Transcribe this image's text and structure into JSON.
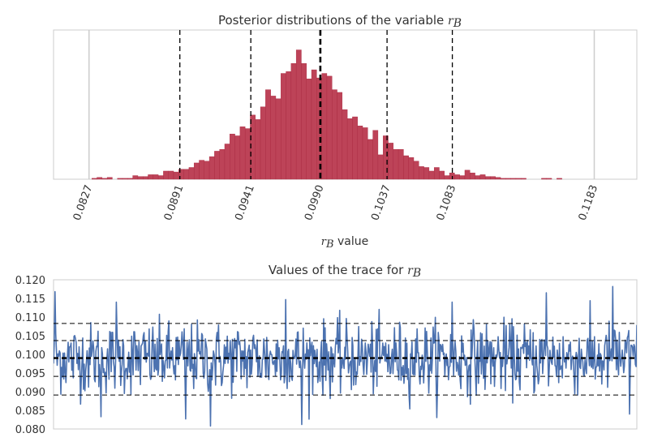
{
  "colors": {
    "hist_fill": "#bd4358",
    "hist_edge": "#a8283f",
    "trace": "#4c72b0",
    "spine": "#cccccc",
    "text": "#333333",
    "dashed": "#000000",
    "ref_line": "#cccccc"
  },
  "chart_data": [
    {
      "type": "bar",
      "title": "Posterior distributions of the variable ",
      "title_math": "r",
      "title_math_sub": "B",
      "xlabel_math": "r",
      "xlabel_math_sub": "B",
      "xlabel": " value",
      "xlim": [
        0.0802,
        0.1213
      ],
      "ylim": [
        0,
        165
      ],
      "grid": false,
      "xticks": [
        0.0827,
        0.0891,
        0.0941,
        0.099,
        0.1037,
        0.1083,
        0.1183
      ],
      "xtick_labels": [
        "0.0827",
        "0.0891",
        "0.0941",
        "0.0990",
        "0.1037",
        "0.1083",
        "0.1183"
      ],
      "reference_lines": [
        0.0827,
        0.1183
      ],
      "credible_lines": [
        0.0891,
        0.0941,
        0.1037,
        0.1083
      ],
      "mean_line": 0.099,
      "bin_start": 0.0829,
      "bin_width": 0.00036,
      "counts": [
        1,
        2,
        1,
        2,
        0,
        1,
        1,
        1,
        4,
        3,
        3,
        5,
        5,
        4,
        9,
        9,
        8,
        11,
        11,
        13,
        18,
        21,
        20,
        25,
        31,
        33,
        39,
        50,
        48,
        58,
        56,
        71,
        66,
        80,
        99,
        92,
        89,
        117,
        119,
        128,
        143,
        128,
        111,
        121,
        112,
        117,
        114,
        99,
        96,
        77,
        67,
        69,
        59,
        57,
        44,
        54,
        27,
        48,
        40,
        33,
        33,
        26,
        24,
        20,
        14,
        13,
        9,
        13,
        9,
        4,
        7,
        5,
        4,
        10,
        7,
        4,
        5,
        3,
        3,
        2,
        1,
        1,
        1,
        1,
        1,
        0,
        0,
        0,
        1,
        1,
        0,
        1
      ]
    },
    {
      "type": "line",
      "title": "Values of the trace for ",
      "title_math": "r",
      "title_math_sub": "B",
      "ylim": [
        0.08,
        0.12
      ],
      "yticks": [
        "0.080",
        "0.085",
        "0.090",
        "0.095",
        "0.100",
        "0.105",
        "0.110",
        "0.115",
        "0.120"
      ],
      "grid": false,
      "n_samples": 800,
      "hlines_dashed": [
        0.0891,
        0.0941,
        0.1037,
        0.1083
      ],
      "hline_mean": 0.099,
      "extreme_points": [
        {
          "i": 3,
          "y": 0.1168
        },
        {
          "i": 100,
          "y": 0.0833
        },
        {
          "i": 132,
          "y": 0.114
        },
        {
          "i": 278,
          "y": 0.0827
        },
        {
          "i": 330,
          "y": 0.0808
        },
        {
          "i": 489,
          "y": 0.1147
        },
        {
          "i": 522,
          "y": 0.0812
        },
        {
          "i": 840,
          "y": 0.114
        },
        {
          "i": 1038,
          "y": 0.1165
        },
        {
          "i": 1178,
          "y": 0.1182
        },
        {
          "i": 1213,
          "y": 0.084
        }
      ]
    }
  ]
}
